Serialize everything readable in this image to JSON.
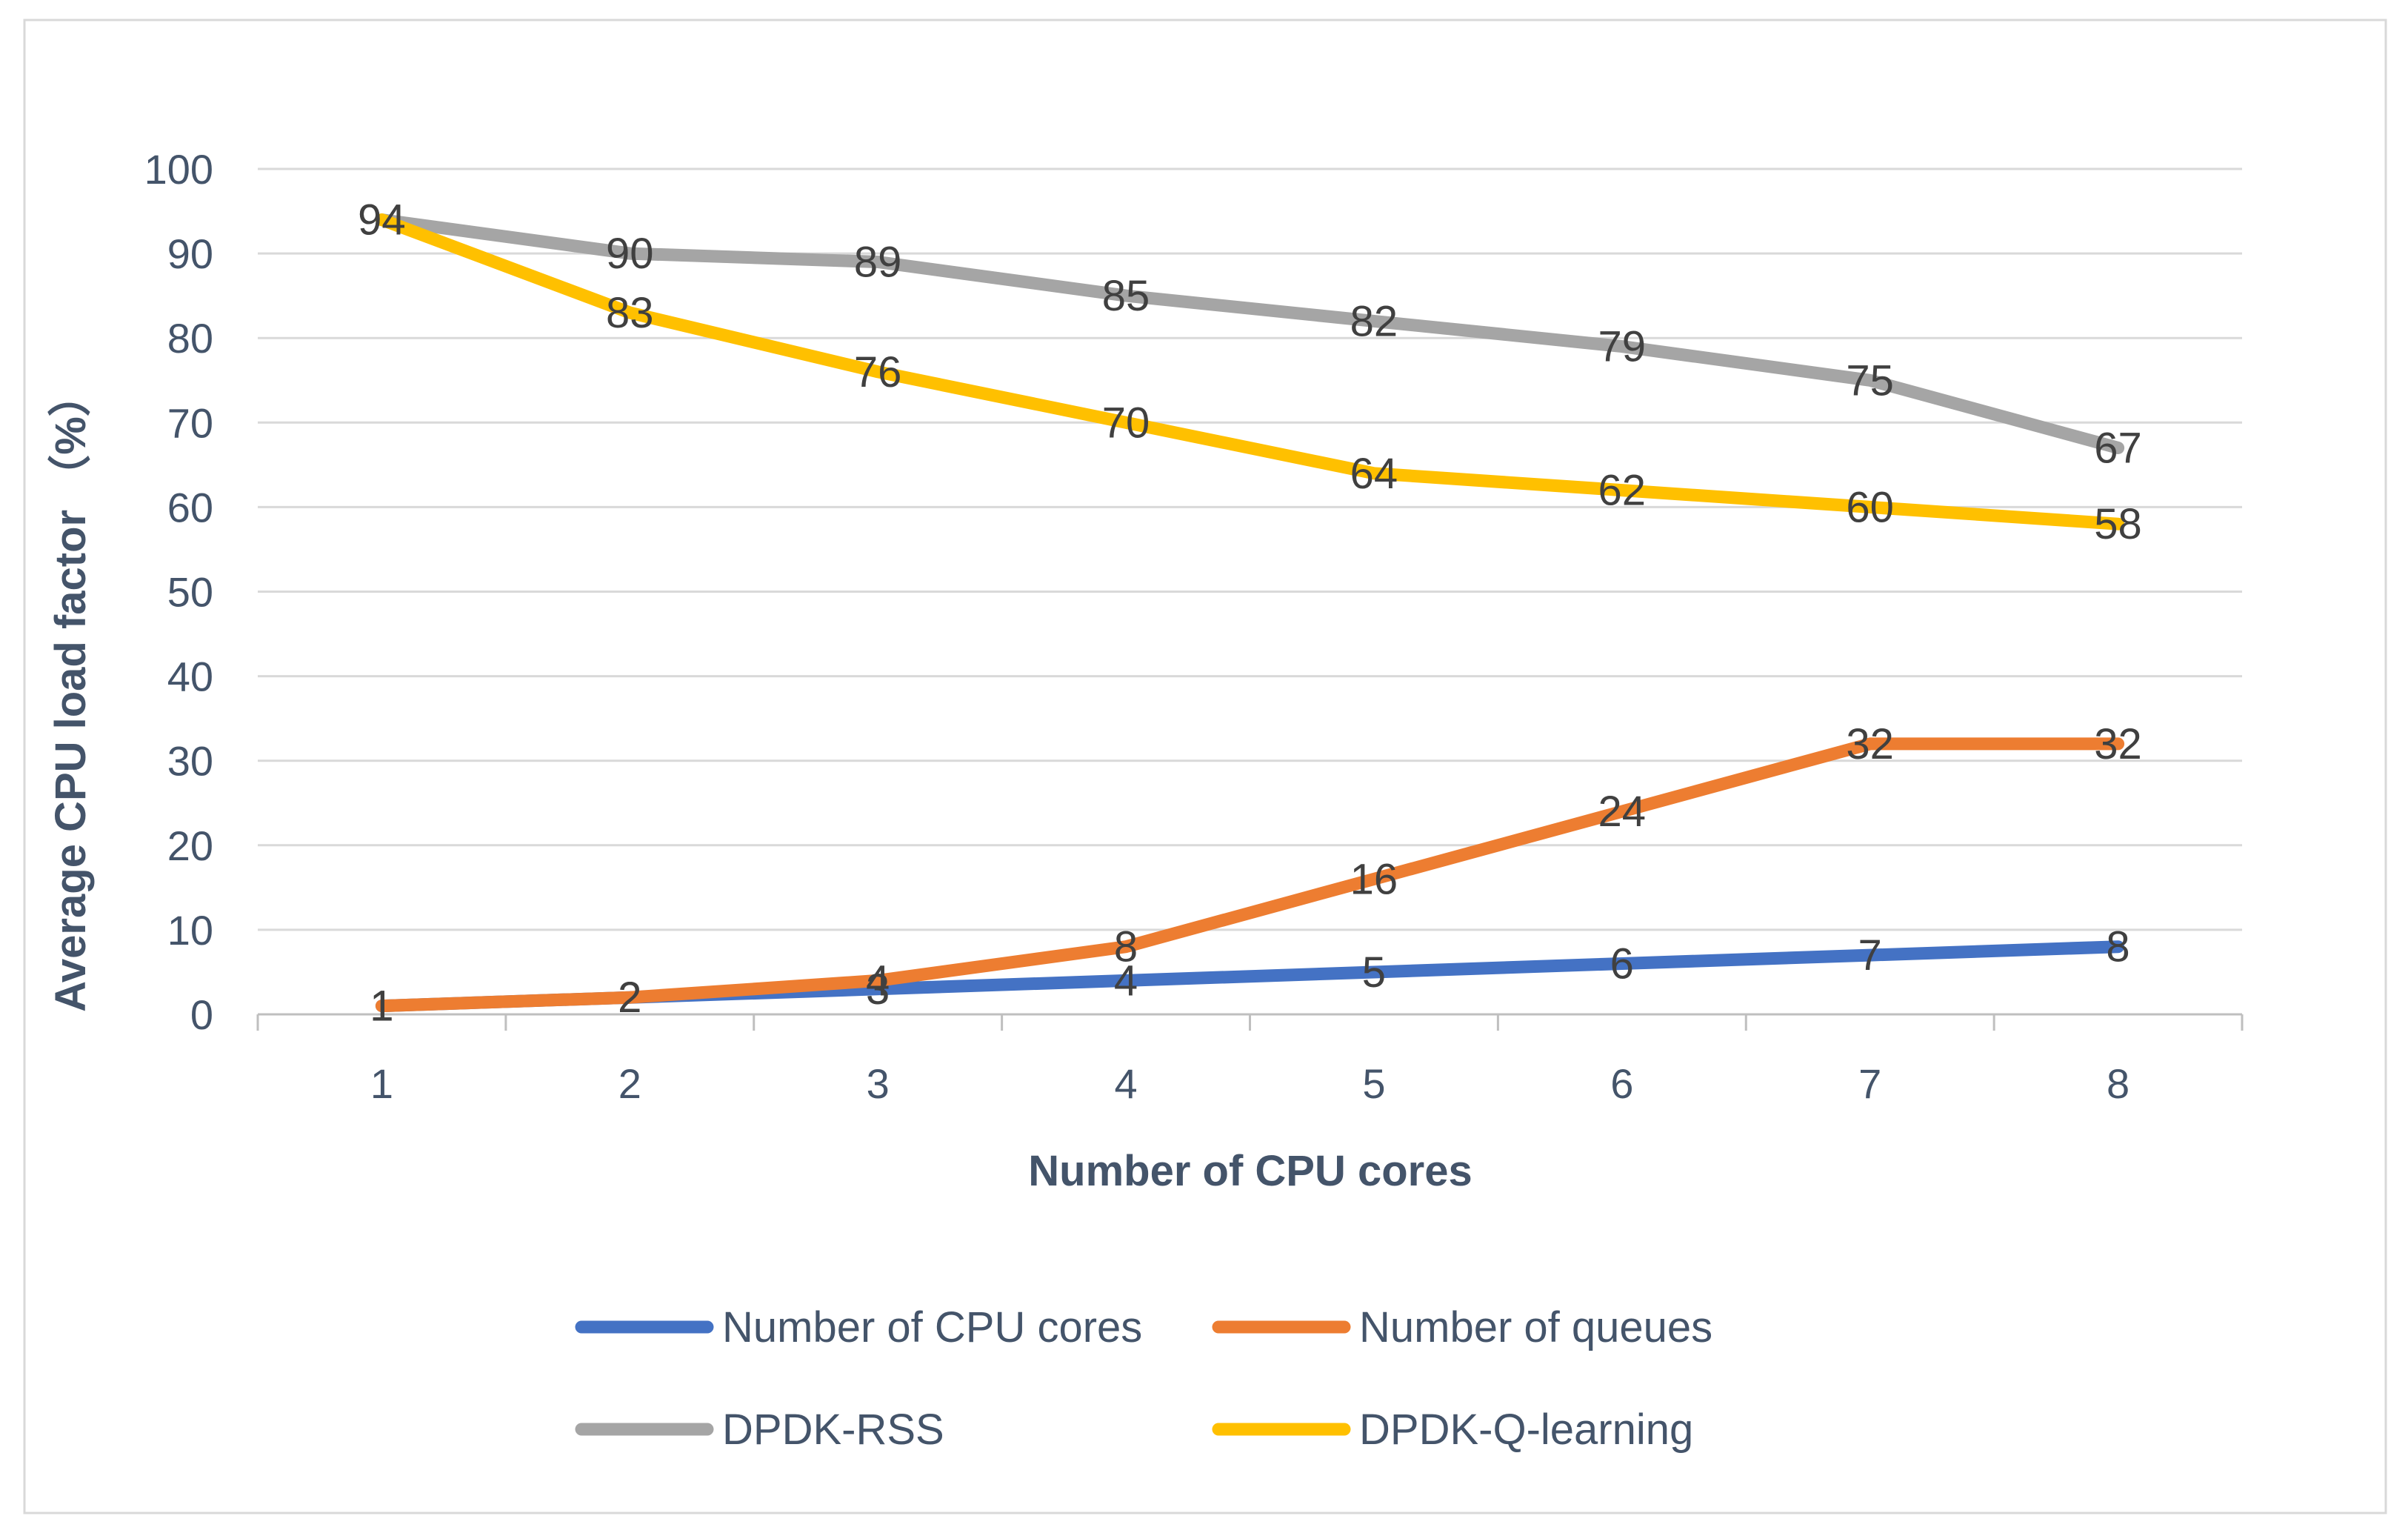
{
  "chart_data": {
    "type": "line",
    "title": "",
    "xlabel": "Number of CPU cores",
    "ylabel": "Average CPU load factor （%）",
    "categories": [
      "1",
      "2",
      "3",
      "4",
      "5",
      "6",
      "7",
      "8"
    ],
    "ylim": [
      0,
      100
    ],
    "yticks": [
      0,
      10,
      20,
      30,
      40,
      50,
      60,
      70,
      80,
      90,
      100
    ],
    "grid": "horizontal",
    "legend_position": "bottom",
    "series": [
      {
        "name": "Number of CPU cores",
        "color": "#4472C4",
        "values": [
          1,
          2,
          3,
          4,
          5,
          6,
          7,
          8
        ]
      },
      {
        "name": "Number of  queues",
        "color": "#ED7D31",
        "values": [
          1,
          2,
          4,
          8,
          16,
          24,
          32,
          32
        ]
      },
      {
        "name": "DPDK-RSS",
        "color": "#A5A5A5",
        "values": [
          94,
          90,
          89,
          85,
          82,
          79,
          75,
          67
        ]
      },
      {
        "name": "DPDK-Q-learning",
        "color": "#FFC000",
        "values": [
          94,
          83,
          76,
          70,
          64,
          62,
          60,
          58
        ]
      }
    ]
  }
}
